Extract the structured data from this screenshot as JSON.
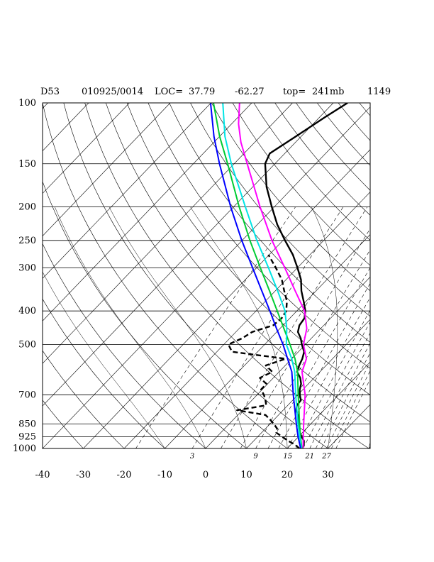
{
  "header": {
    "station": "D53",
    "datetime": "010925/0014",
    "loc_label": "LOC=",
    "lat": "37.79",
    "lon": "-62.27",
    "top_label": "top=",
    "top_value": "241mb",
    "number": "1149"
  },
  "chart_data": {
    "type": "line",
    "title": "",
    "xlabel": "",
    "ylabel": "",
    "diagram": "skew-T log-p",
    "y_scale": "log pressure (mb)",
    "ylim": [
      1000,
      100
    ],
    "xlim": [
      -40,
      40
    ],
    "x_ticks": [
      "-40",
      "-30",
      "-20",
      "-10",
      "0",
      "10",
      "20",
      "30"
    ],
    "x_tick_values": [
      -40,
      -30,
      -20,
      -10,
      0,
      10,
      20,
      30
    ],
    "p_ticks": [
      "100",
      "150",
      "200",
      "250",
      "300",
      "400",
      "500",
      "700",
      "850",
      "925",
      "1000"
    ],
    "p_tick_values": [
      100,
      150,
      200,
      250,
      300,
      400,
      500,
      700,
      850,
      925,
      1000
    ],
    "mixing_ratio_labels": [
      "3",
      "9",
      "15",
      "21",
      "27"
    ],
    "mixing_ratio_values": [
      3,
      9,
      15,
      21,
      27
    ],
    "grid": true,
    "series": [
      {
        "role": "temperature",
        "color": "#000000",
        "dash": false,
        "points": [
          [
            1000,
            23.8
          ],
          [
            975,
            23.2
          ],
          [
            950,
            22.3
          ],
          [
            925,
            20.8
          ],
          [
            900,
            19.4
          ],
          [
            875,
            18.2
          ],
          [
            850,
            17.2
          ],
          [
            825,
            16.0
          ],
          [
            800,
            14.7
          ],
          [
            775,
            13.2
          ],
          [
            750,
            12.2
          ],
          [
            725,
            12.0
          ],
          [
            700,
            10.5
          ],
          [
            675,
            9.2
          ],
          [
            650,
            8.2
          ],
          [
            625,
            6.6
          ],
          [
            600,
            4.4
          ],
          [
            575,
            3.4
          ],
          [
            550,
            2.6
          ],
          [
            525,
            1.4
          ],
          [
            500,
            -0.9
          ],
          [
            480,
            -2.6
          ],
          [
            460,
            -4.8
          ],
          [
            440,
            -6.0
          ],
          [
            420,
            -6.4
          ],
          [
            400,
            -7.9
          ],
          [
            375,
            -10.6
          ],
          [
            350,
            -13.6
          ],
          [
            325,
            -16.3
          ],
          [
            300,
            -20.0
          ],
          [
            275,
            -24.2
          ],
          [
            250,
            -29.5
          ],
          [
            225,
            -35.1
          ],
          [
            200,
            -40.6
          ],
          [
            175,
            -46.6
          ],
          [
            150,
            -52.4
          ],
          [
            140,
            -53.7
          ],
          [
            125,
            -51.3
          ],
          [
            110,
            -48.7
          ],
          [
            100,
            -46.5
          ]
        ]
      },
      {
        "role": "dewpoint",
        "color": "#000000",
        "dash": true,
        "points": [
          [
            1000,
            23.0
          ],
          [
            975,
            21.0
          ],
          [
            950,
            18.4
          ],
          [
            925,
            16.0
          ],
          [
            900,
            13.6
          ],
          [
            875,
            12.8
          ],
          [
            850,
            11.0
          ],
          [
            825,
            9.0
          ],
          [
            800,
            6.8
          ],
          [
            775,
            -1.3
          ],
          [
            750,
            4.7
          ],
          [
            725,
            3.3
          ],
          [
            700,
            1.7
          ],
          [
            675,
            -0.3
          ],
          [
            650,
            -0.3
          ],
          [
            625,
            -3.3
          ],
          [
            600,
            -1.7
          ],
          [
            575,
            -4.8
          ],
          [
            550,
            -1.5
          ],
          [
            525,
            -16.3
          ],
          [
            500,
            -18.9
          ],
          [
            480,
            -17.0
          ],
          [
            460,
            -16.0
          ],
          [
            440,
            -12.4
          ],
          [
            420,
            -12.0
          ],
          [
            400,
            -12.6
          ],
          [
            375,
            -14.7
          ],
          [
            350,
            -17.8
          ],
          [
            325,
            -21.0
          ],
          [
            300,
            -25.3
          ],
          [
            275,
            -30.2
          ]
        ]
      },
      {
        "role": "parcel-magenta",
        "color": "#ff00ff",
        "dash": false,
        "points": [
          [
            1000,
            23.9
          ],
          [
            925,
            21.2
          ],
          [
            850,
            18.3
          ],
          [
            700,
            11.8
          ],
          [
            600,
            5.6
          ],
          [
            550,
            3.6
          ],
          [
            500,
            -0.5
          ],
          [
            450,
            -3.4
          ],
          [
            400,
            -8.1
          ],
          [
            350,
            -15.1
          ],
          [
            300,
            -23.1
          ],
          [
            250,
            -32.7
          ],
          [
            200,
            -43.5
          ],
          [
            150,
            -56.8
          ],
          [
            130,
            -63.4
          ],
          [
            115,
            -68.3
          ],
          [
            100,
            -73.0
          ]
        ]
      },
      {
        "role": "parcel-green",
        "color": "#00cc33",
        "dash": false,
        "points": [
          [
            1000,
            23.6
          ],
          [
            925,
            20.5
          ],
          [
            850,
            17.3
          ],
          [
            700,
            10.1
          ],
          [
            600,
            4.5
          ],
          [
            550,
            0.8
          ],
          [
            500,
            -3.8
          ],
          [
            450,
            -9.0
          ],
          [
            400,
            -14.8
          ],
          [
            350,
            -21.4
          ],
          [
            300,
            -29.1
          ],
          [
            250,
            -38.1
          ],
          [
            200,
            -48.6
          ],
          [
            150,
            -61.6
          ],
          [
            125,
            -70.0
          ],
          [
            100,
            -79.4
          ]
        ]
      },
      {
        "role": "parcel-cyan",
        "color": "#00e5e5",
        "dash": false,
        "points": [
          [
            1000,
            23.5
          ],
          [
            925,
            20.3
          ],
          [
            850,
            16.9
          ],
          [
            700,
            9.5
          ],
          [
            600,
            3.8
          ],
          [
            550,
            0.0
          ],
          [
            500,
            -4.7
          ],
          [
            450,
            -8.3
          ],
          [
            400,
            -12.9
          ],
          [
            350,
            -19.4
          ],
          [
            300,
            -27.1
          ],
          [
            250,
            -36.4
          ],
          [
            200,
            -47.1
          ],
          [
            150,
            -60.7
          ],
          [
            125,
            -68.7
          ],
          [
            100,
            -77.1
          ]
        ]
      },
      {
        "role": "parcel-blue",
        "color": "#0000ff",
        "dash": false,
        "points": [
          [
            1000,
            23.3
          ],
          [
            925,
            19.9
          ],
          [
            850,
            16.5
          ],
          [
            700,
            8.9
          ],
          [
            600,
            3.1
          ],
          [
            500,
            -5.5
          ],
          [
            450,
            -10.8
          ],
          [
            400,
            -16.6
          ],
          [
            350,
            -23.3
          ],
          [
            300,
            -31.0
          ],
          [
            250,
            -40.1
          ],
          [
            200,
            -50.7
          ],
          [
            150,
            -63.6
          ],
          [
            125,
            -71.4
          ],
          [
            100,
            -80.1
          ]
        ]
      }
    ]
  }
}
